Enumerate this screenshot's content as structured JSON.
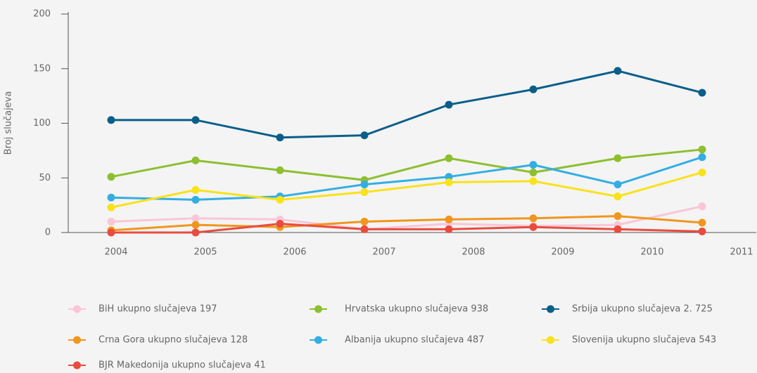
{
  "chart_data": {
    "type": "line",
    "ylabel": "Broj slučajeva",
    "categories": [
      "2004",
      "2005",
      "2006",
      "2007",
      "2008",
      "2009",
      "2010",
      "2011"
    ],
    "ylim": [
      0,
      200
    ],
    "yticks": [
      0,
      50,
      100,
      150,
      200
    ],
    "series": [
      {
        "name": "BiH ukupno slučajeva 197",
        "color": "#f9c6d8",
        "values": [
          10,
          13,
          12,
          3,
          8,
          6,
          7,
          24
        ]
      },
      {
        "name": "Hrvatska ukupno slučajeva 938",
        "color": "#8dbf2f",
        "values": [
          51,
          66,
          57,
          48,
          68,
          55,
          68,
          76
        ]
      },
      {
        "name": "Srbija ukupno slučajeva 2. 725",
        "color": "#0a5e8a",
        "values": [
          103,
          103,
          87,
          89,
          117,
          131,
          148,
          128
        ]
      },
      {
        "name": "Crna Gora ukupno slučajeva 128",
        "color": "#f0961e",
        "values": [
          2,
          7,
          5,
          10,
          12,
          13,
          15,
          9
        ]
      },
      {
        "name": "Albanija ukupno slučajeva 487",
        "color": "#33aee3",
        "values": [
          32,
          30,
          33,
          44,
          51,
          62,
          44,
          69
        ]
      },
      {
        "name": "Slovenija ukupno slučajeva 543",
        "color": "#f9e21a",
        "values": [
          23,
          39,
          30,
          37,
          46,
          47,
          33,
          55
        ]
      },
      {
        "name": "BJR Makedonija ukupno slučajeva 41",
        "color": "#e84c3d",
        "values": [
          0,
          0,
          8,
          3,
          3,
          5,
          3,
          1
        ]
      }
    ]
  }
}
